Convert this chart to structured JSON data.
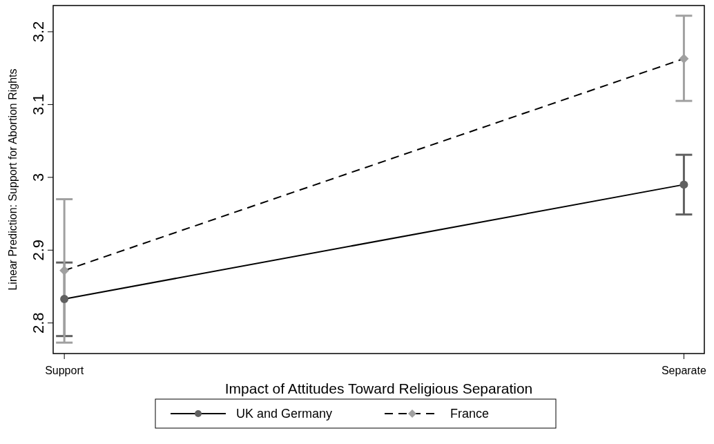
{
  "chart_data": {
    "type": "line",
    "xlabel": "Impact of Attitudes Toward Religious Separation",
    "ylabel": "Linear Prediction: Support for Abortion Rights",
    "categories": [
      "Support",
      "Separate"
    ],
    "series": [
      {
        "name": "UK and Germany",
        "color": "#606060",
        "values": [
          2.833,
          2.99
        ],
        "errors": [
          [
            2.782,
            2.883
          ],
          [
            2.949,
            3.031
          ]
        ],
        "marker": "circle",
        "line_style": "solid"
      },
      {
        "name": "France",
        "color": "#a0a0a0",
        "values": [
          2.872,
          3.163
        ],
        "errors": [
          [
            2.773,
            2.97
          ],
          [
            3.105,
            3.222
          ]
        ],
        "marker": "diamond",
        "line_style": "dashed"
      }
    ],
    "ylim": [
      2.758,
      3.236
    ],
    "yticks": [
      2.8,
      2.9,
      {
        "value": 3,
        "label": "3"
      },
      3.1,
      3.2
    ],
    "grid": false,
    "legend": "bottom"
  }
}
